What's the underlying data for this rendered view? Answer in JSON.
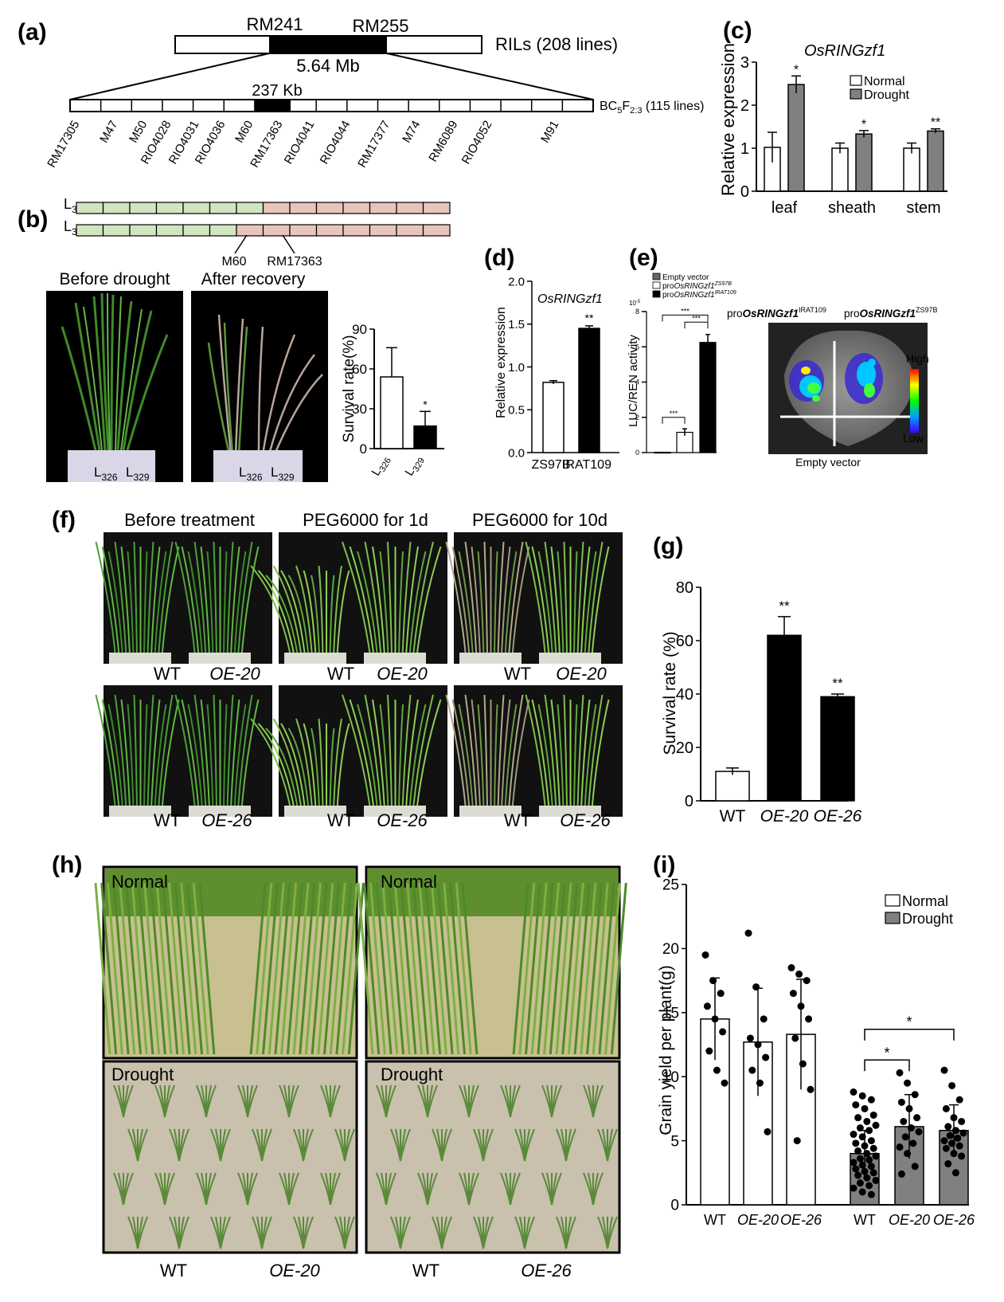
{
  "panels": {
    "a": {
      "label": "(a)",
      "top_markers": [
        "RM241",
        "RM255"
      ],
      "top_pop": "RILs (208 lines)",
      "top_dist": "5.64 Mb",
      "fine_dist": "237 Kb",
      "fine_pop_main": "BC",
      "fine_pop_s1": "5",
      "fine_pop_mid": "F",
      "fine_pop_s2": "2:3",
      "fine_pop_tail": " (115 lines)",
      "markers": [
        "RM17305",
        "M47",
        "M50",
        "RIO4028",
        "RIO4031",
        "RIO4036",
        "M60",
        "RM17363",
        "RIO4041",
        "RIO4044",
        "RM17377",
        "M74",
        "RM6089",
        "RIO4052",
        "M91"
      ]
    },
    "b": {
      "label": "(b)",
      "lines": [
        {
          "main": "L",
          "sub": "326"
        },
        {
          "main": "L",
          "sub": "329"
        }
      ],
      "markers": [
        "M60",
        "RM17363"
      ],
      "photo_titles": [
        "Before drought",
        "After recovery"
      ],
      "colors": {
        "green": "#cfe6c0",
        "pink": "#e8c4bc"
      }
    },
    "c": {
      "label": "(c)"
    },
    "d": {
      "label": "(d)"
    },
    "e": {
      "label": "(e)",
      "img_left_pre": "pro",
      "img_left_gene": "OsRINGzf1",
      "img_left_sup": "IRAT109",
      "img_right_pre": "pro",
      "img_right_gene": "OsRINGzf1",
      "img_right_sup": "ZS97B",
      "img_bottom": "Empty vector",
      "scale_high": "High",
      "scale_low": "Low"
    },
    "f": {
      "label": "(f)",
      "columns": [
        "Before treatment",
        "PEG6000 for 1d",
        "PEG6000 for 10d"
      ],
      "row_labels": [
        [
          "WT",
          "OE-20"
        ],
        [
          "WT",
          "OE-26"
        ]
      ]
    },
    "g": {
      "label": "(g)"
    },
    "h": {
      "label": "(h)",
      "photo_labels": [
        "Normal",
        "Normal",
        "Drought",
        "Drought"
      ],
      "bottom_labels": [
        [
          "WT",
          "OE-20"
        ],
        [
          "WT",
          "OE-26"
        ]
      ]
    },
    "i": {
      "label": "(i)"
    }
  },
  "chart_data": [
    {
      "id": "b",
      "type": "bar",
      "categories": [
        {
          "main": "L",
          "sub": "326"
        },
        {
          "main": "L",
          "sub": "329"
        }
      ],
      "values": [
        54,
        17
      ],
      "errors": [
        22,
        11
      ],
      "significance": [
        "",
        "*"
      ],
      "ylabel": "Survival rate(%)",
      "ylim": [
        0,
        90
      ],
      "yticks": [
        0,
        30,
        60,
        90
      ],
      "bar_colors": [
        "#ffffff",
        "#000000"
      ]
    },
    {
      "id": "c",
      "type": "bar",
      "title": "OsRINGzf1",
      "categories": [
        "leaf",
        "sheath",
        "stem"
      ],
      "series": [
        {
          "name": "Normal",
          "color": "#ffffff",
          "values": [
            1.02,
            1.0,
            1.0
          ],
          "errors": [
            0.35,
            0.12,
            0.12
          ],
          "significance": [
            "",
            "",
            ""
          ]
        },
        {
          "name": "Drought",
          "color": "#808080",
          "values": [
            2.48,
            1.33,
            1.4
          ],
          "errors": [
            0.2,
            0.08,
            0.05
          ],
          "significance": [
            "*",
            "*",
            "**"
          ]
        }
      ],
      "ylabel": "Relative expression",
      "ylim": [
        0,
        3
      ],
      "yticks": [
        0,
        1,
        2,
        3
      ],
      "legend": "top-right"
    },
    {
      "id": "d",
      "type": "bar",
      "title": "OsRINGzf1",
      "categories": [
        "ZS97B",
        "IRAT109"
      ],
      "values": [
        0.82,
        1.45
      ],
      "errors": [
        0.02,
        0.03
      ],
      "significance": [
        "",
        "**"
      ],
      "ylabel": "Relative expression",
      "ylim": [
        0,
        2
      ],
      "yticks": [
        "0.0",
        "0.5",
        "1.0",
        "1.5",
        "2.0"
      ],
      "bar_colors": [
        "#ffffff",
        "#000000"
      ]
    },
    {
      "id": "e",
      "type": "bar",
      "categories": [
        "Empty vector",
        "ZS97B",
        "IRAT109"
      ],
      "legend_entries": [
        {
          "pre": "Empty vector",
          "gene": "",
          "sup": "",
          "color": "#666666"
        },
        {
          "pre": "pro",
          "gene": "OsRINGzf1",
          "sup": "ZS97B",
          "color": "#ffffff"
        },
        {
          "pre": "pro",
          "gene": "OsRINGzf1",
          "sup": "IRAT109",
          "color": "#000000"
        }
      ],
      "values": [
        0.02,
        1.15,
        6.25
      ],
      "errors": [
        0.0,
        0.2,
        0.45
      ],
      "bar_colors": [
        "#666666",
        "#ffffff",
        "#000000"
      ],
      "ylabel": "LUC/REN activity",
      "yexp": "10",
      "yexp_sup": "-5",
      "ylim": [
        0,
        8
      ],
      "yticks": [
        0,
        2,
        4,
        6,
        8
      ],
      "brackets": [
        {
          "from": 0,
          "to": 1,
          "label": "***"
        },
        {
          "from": 1,
          "to": 2,
          "label": "***"
        },
        {
          "from": 0,
          "to": 2,
          "label": "***"
        }
      ],
      "legend": "top-left"
    },
    {
      "id": "g",
      "type": "bar",
      "categories": [
        "WT",
        "OE-20",
        "OE-26"
      ],
      "values": [
        11,
        62,
        39
      ],
      "errors": [
        1.3,
        7,
        1
      ],
      "significance": [
        "",
        "**",
        "**"
      ],
      "bar_colors": [
        "#ffffff",
        "#000000",
        "#000000"
      ],
      "ylabel": "Survival rate (%)",
      "ylim": [
        0,
        80
      ],
      "yticks": [
        0,
        20,
        40,
        60,
        80
      ]
    },
    {
      "id": "i",
      "type": "bar",
      "categories": [
        "WT",
        "OE-20",
        "OE-26",
        "WT",
        "OE-20",
        "OE-26"
      ],
      "values": [
        14.5,
        12.7,
        13.3,
        4.0,
        6.1,
        5.8
      ],
      "errors": [
        3.2,
        4.2,
        4.3,
        1.8,
        2.5,
        2.0
      ],
      "bar_colors": [
        "#ffffff",
        "#ffffff",
        "#ffffff",
        "#808080",
        "#808080",
        "#808080"
      ],
      "series": [
        {
          "name": "Normal",
          "color": "#ffffff"
        },
        {
          "name": "Drought",
          "color": "#808080"
        }
      ],
      "points": [
        [
          19.5,
          17.5,
          16.5,
          15.5,
          14.5,
          13.5,
          12.0,
          10.5,
          9.5
        ],
        [
          21.2,
          17.0,
          14.5,
          13.0,
          12.5,
          11.5,
          10.5,
          9.5,
          5.7
        ],
        [
          18.5,
          18.0,
          17.5,
          16.5,
          15.5,
          14.5,
          13.0,
          11.0,
          9.0,
          5.0
        ],
        [
          8.8,
          8.5,
          8.2,
          7.8,
          7.5,
          7.0,
          6.8,
          6.5,
          6.2,
          6.0,
          5.8,
          5.5,
          5.3,
          5.0,
          4.8,
          4.6,
          4.4,
          4.2,
          4.0,
          3.8,
          3.6,
          3.5,
          3.3,
          3.1,
          3.0,
          2.8,
          2.6,
          2.5,
          2.3,
          2.1,
          1.9,
          1.7,
          1.5,
          1.3,
          1.0,
          0.8
        ],
        [
          10.3,
          9.5,
          8.6,
          8.0,
          7.5,
          6.8,
          6.5,
          6.0,
          5.7,
          5.3,
          4.8,
          4.5,
          4.0,
          3.0,
          2.4
        ],
        [
          10.5,
          9.3,
          8.2,
          7.5,
          6.8,
          6.5,
          6.1,
          5.8,
          5.6,
          5.4,
          5.2,
          5.0,
          4.8,
          4.6,
          4.4,
          4.0,
          3.8,
          3.2,
          2.5
        ]
      ],
      "brackets": [
        {
          "from": 3,
          "to": 4,
          "label": "*"
        },
        {
          "from": 3,
          "to": 5,
          "label": "*"
        }
      ],
      "ylabel": "Grain yield per plant(g)",
      "ylim": [
        0,
        25
      ],
      "yticks": [
        0,
        5,
        10,
        15,
        20,
        25
      ],
      "legend": "top-right"
    }
  ]
}
